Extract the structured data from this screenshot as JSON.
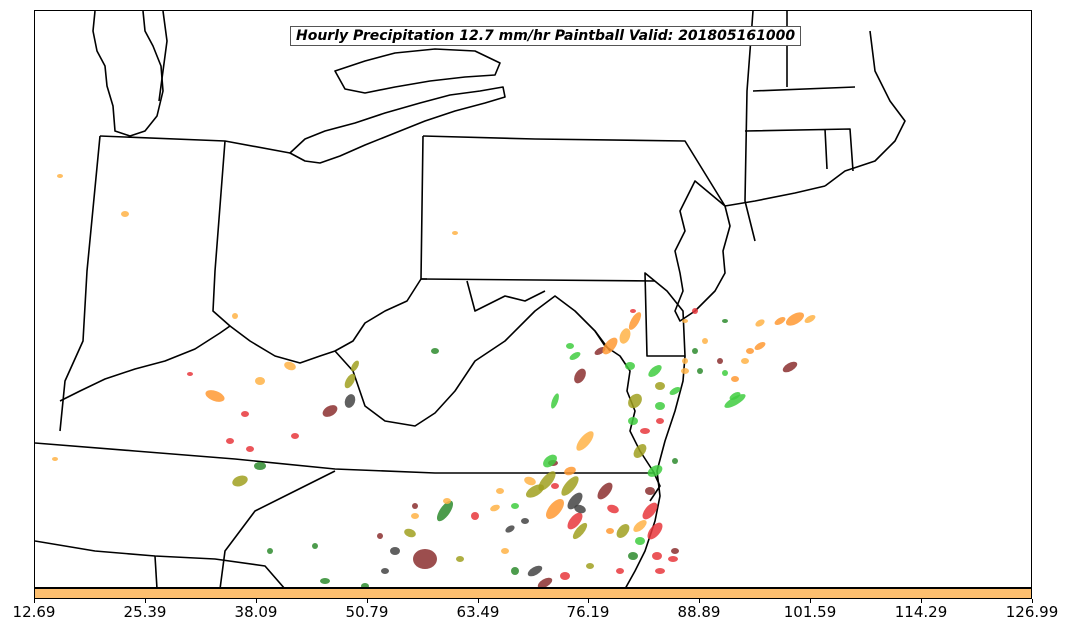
{
  "title": "Hourly Precipitation 12.7 mm/hr Paintball Valid: 201805161000",
  "colorbar": {
    "color": "#fdbf6f",
    "ticks": [
      "12.69",
      "25.39",
      "38.09",
      "50.79",
      "63.49",
      "76.19",
      "88.89",
      "101.59",
      "114.29",
      "126.99"
    ]
  },
  "member_colors": [
    "#ff9933",
    "#ffb347",
    "#e8373c",
    "#40cc40",
    "#2e8b2e",
    "#a0a020",
    "#8b2f2f",
    "#444444"
  ]
}
